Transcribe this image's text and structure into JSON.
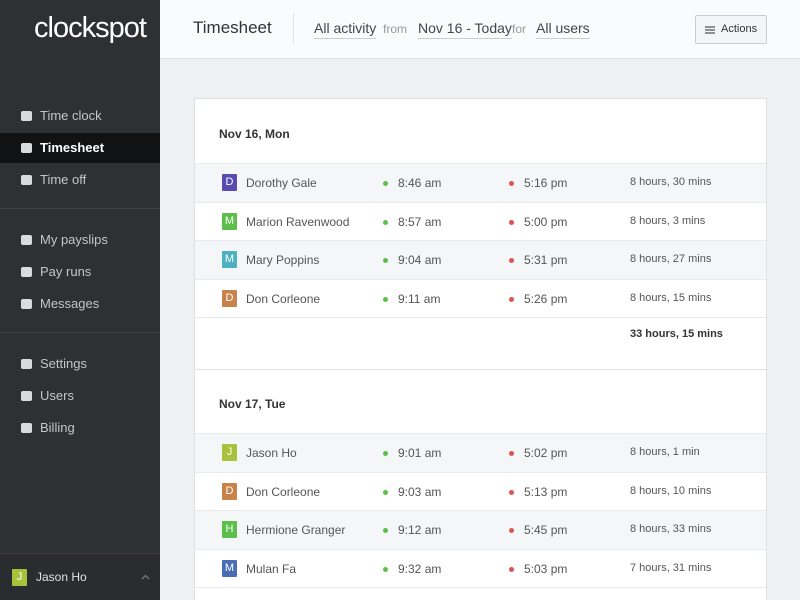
{
  "sidebar": {
    "logo": "clockspot",
    "nav": [
      [
        {
          "label": "Time clock"
        },
        {
          "label": "Timesheet",
          "active": true
        },
        {
          "label": "Time off"
        }
      ],
      [
        {
          "label": "My payslips"
        },
        {
          "label": "Pay runs"
        },
        {
          "label": "Messages"
        }
      ],
      [
        {
          "label": "Settings"
        },
        {
          "label": "Users"
        },
        {
          "label": "Billing"
        }
      ]
    ],
    "user": {
      "initial": "J",
      "name": "Jason Ho",
      "color": "#a9c23c"
    }
  },
  "header": {
    "title": "Timesheet",
    "activity": "All activity",
    "from_label": "from",
    "range": "Nov 16 - Today",
    "for_label": "for",
    "users": "All users",
    "actions": "Actions"
  },
  "days": [
    {
      "date": "Nov 16, Mon",
      "entries": [
        {
          "initial": "D",
          "name": "Dorothy Gale",
          "in": "8:46 am",
          "out": "5:16 pm",
          "duration": "8 hours, 30 mins",
          "color": "#5a4bb0"
        },
        {
          "initial": "M",
          "name": "Marion Ravenwood",
          "in": "8:57 am",
          "out": "5:00 pm",
          "duration": "8 hours, 3 mins",
          "color": "#5cbf4b"
        },
        {
          "initial": "M",
          "name": "Mary Poppins",
          "in": "9:04 am",
          "out": "5:31 pm",
          "duration": "8 hours, 27 mins",
          "color": "#4eb1c2"
        },
        {
          "initial": "D",
          "name": "Don Corleone",
          "in": "9:11 am",
          "out": "5:26 pm",
          "duration": "8 hours, 15 mins",
          "color": "#c8834a"
        }
      ],
      "total": "33 hours, 15 mins"
    },
    {
      "date": "Nov 17, Tue",
      "entries": [
        {
          "initial": "J",
          "name": "Jason Ho",
          "in": "9:01 am",
          "out": "5:02 pm",
          "duration": "8 hours, 1 min",
          "color": "#a9c23c"
        },
        {
          "initial": "D",
          "name": "Don Corleone",
          "in": "9:03 am",
          "out": "5:13 pm",
          "duration": "8 hours, 10 mins",
          "color": "#c8834a"
        },
        {
          "initial": "H",
          "name": "Hermione Granger",
          "in": "9:12 am",
          "out": "5:45 pm",
          "duration": "8 hours, 33 mins",
          "color": "#5cbf4b"
        },
        {
          "initial": "M",
          "name": "Mulan Fa",
          "in": "9:32 am",
          "out": "5:03 pm",
          "duration": "7 hours, 31 mins",
          "color": "#4a6db3"
        }
      ]
    }
  ]
}
